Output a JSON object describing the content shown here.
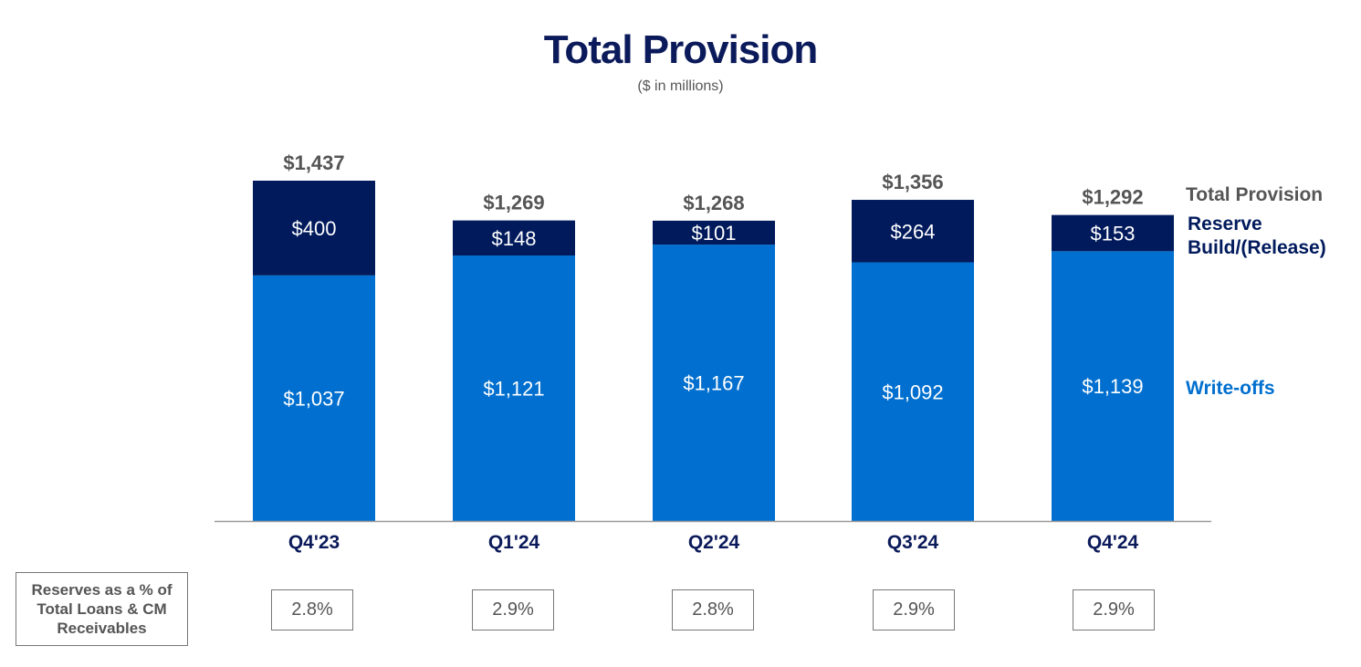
{
  "title": "Total Provision",
  "subtitle": "($ in millions)",
  "colors": {
    "title": "#0b1a5a",
    "reserve": "#001a5c",
    "writeoffs": "#006fcf",
    "total_label": "#555555",
    "axis": "#999999"
  },
  "chart_data": {
    "type": "bar",
    "stacked": true,
    "categories": [
      "Q4'23",
      "Q1'24",
      "Q2'24",
      "Q3'24",
      "Q4'24"
    ],
    "series": [
      {
        "name": "Write-offs",
        "values": [
          1037,
          1121,
          1167,
          1092,
          1139
        ],
        "labels": [
          "$1,037",
          "$1,121",
          "$1,167",
          "$1,092",
          "$1,139"
        ]
      },
      {
        "name": "Reserve Build/(Release)",
        "values": [
          400,
          148,
          101,
          264,
          153
        ],
        "labels": [
          "$400",
          "$148",
          "$101",
          "$264",
          "$153"
        ]
      }
    ],
    "totals": {
      "name": "Total Provision",
      "values": [
        1437,
        1269,
        1268,
        1356,
        1292
      ],
      "labels": [
        "$1,437",
        "$1,269",
        "$1,268",
        "$1,356",
        "$1,292"
      ]
    },
    "ylim": [
      0,
      1437
    ],
    "legend_placement": "right",
    "grid": false
  },
  "reserves": {
    "label": "Reserves as a % of Total Loans & CM Receivables",
    "values": [
      "2.8%",
      "2.9%",
      "2.8%",
      "2.9%",
      "2.9%"
    ]
  }
}
